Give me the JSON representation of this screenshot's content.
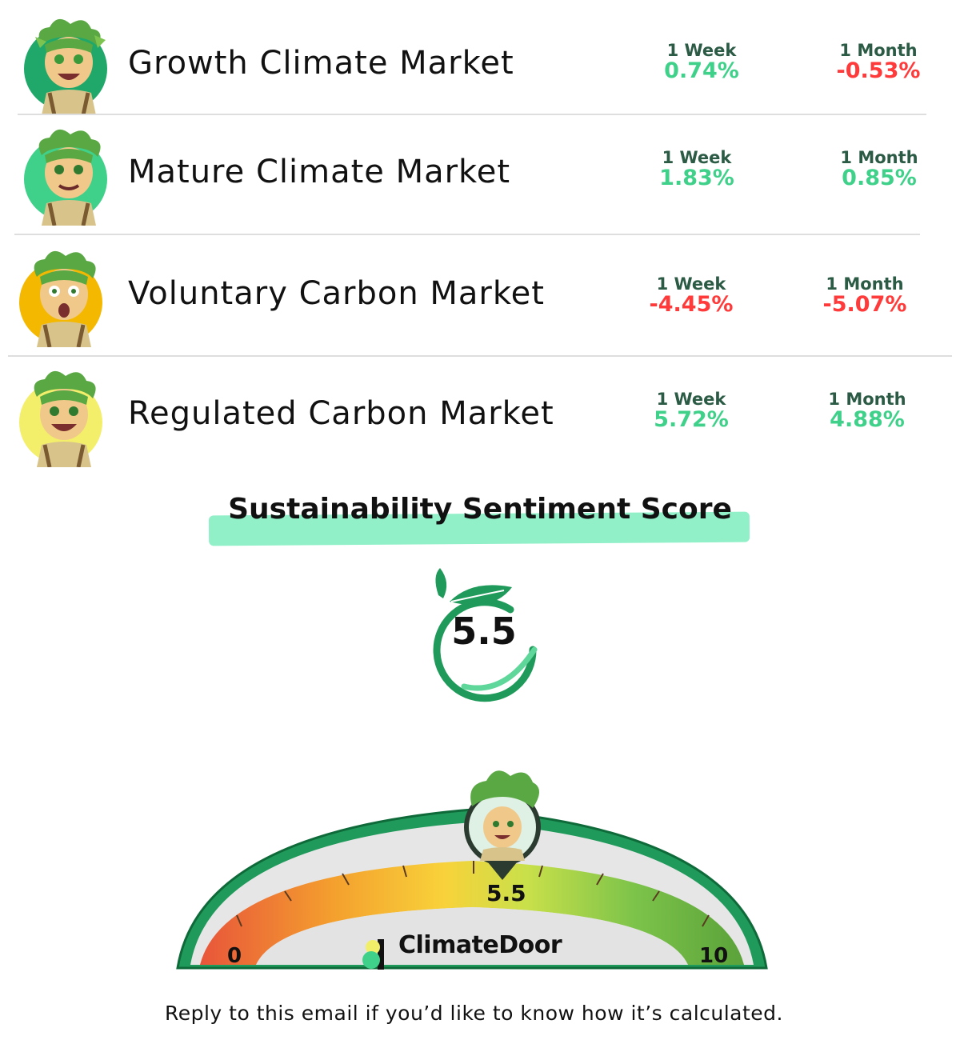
{
  "markets": [
    {
      "name": "Growth Climate Market",
      "week_label": "1 Week",
      "week_value": "0.74%",
      "week_trend": "up",
      "month_label": "1 Month",
      "month_value": "-0.53%",
      "month_trend": "down",
      "avatar_color": "#1fa86a"
    },
    {
      "name": "Mature Climate Market",
      "week_label": "1 Week",
      "week_value": "1.83%",
      "week_trend": "up",
      "month_label": "1 Month",
      "month_value": "0.85%",
      "month_trend": "up",
      "avatar_color": "#3fd08a"
    },
    {
      "name": "Voluntary Carbon Market",
      "week_label": "1 Week",
      "week_value": "-4.45%",
      "week_trend": "down",
      "month_label": "1 Month",
      "month_value": "-5.07%",
      "month_trend": "down",
      "avatar_color": "#f5b800"
    },
    {
      "name": "Regulated Carbon Market",
      "week_label": "1 Week",
      "week_value": "5.72%",
      "week_trend": "up",
      "month_label": "1 Month",
      "month_value": "4.88%",
      "month_trend": "up",
      "avatar_color": "#f3ef6a"
    }
  ],
  "sentiment": {
    "title": "Sustainability Sentiment Score",
    "score": "5.5",
    "gauge_min": "0",
    "gauge_max": "10",
    "gauge_value": 5.5,
    "brand": "ClimateDoor"
  },
  "footer_text": "Reply to this email if you’d like to know how it’s calculated.",
  "colors": {
    "positive": "#3fd08a",
    "negative": "#ff3a3a",
    "label": "#2b5a45",
    "accent_green": "#1f9a5a",
    "highlight": "#92f0c9"
  }
}
